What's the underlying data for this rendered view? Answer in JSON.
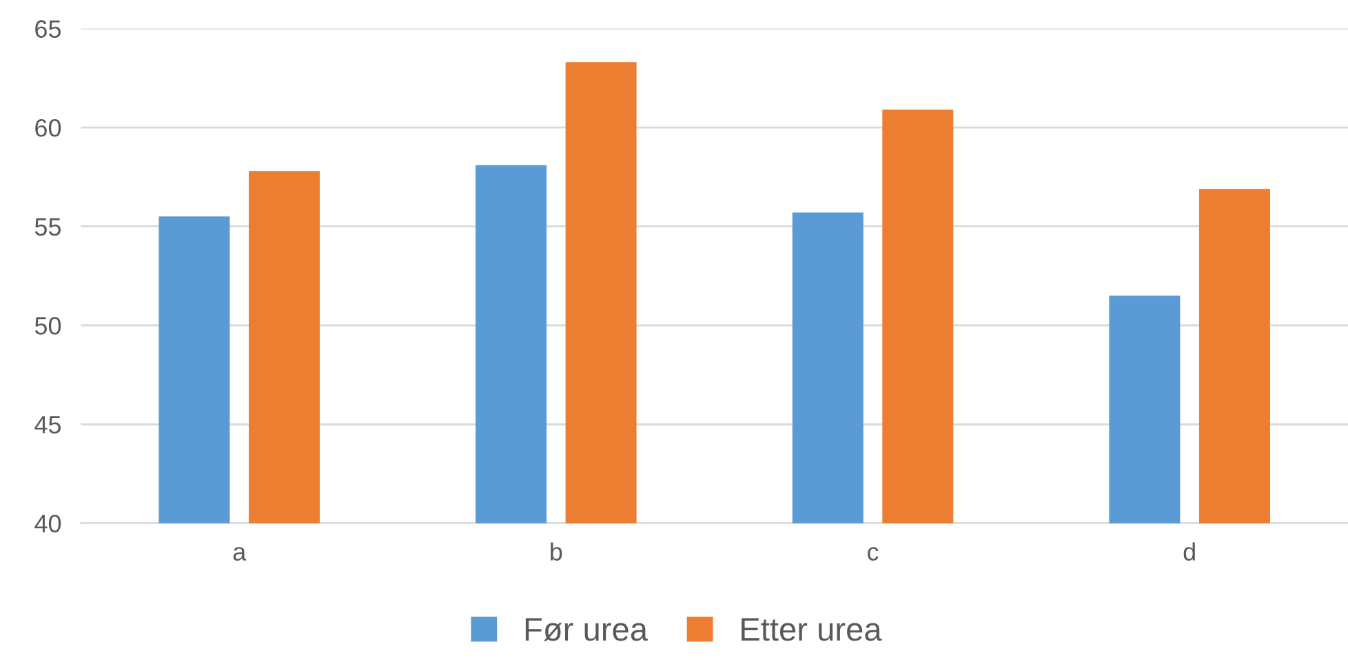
{
  "chart_data": {
    "type": "bar",
    "categories": [
      "a",
      "b",
      "c",
      "d"
    ],
    "series": [
      {
        "name": "Før urea",
        "color": "#5b9bd5",
        "values": [
          55.5,
          58.1,
          55.7,
          51.5
        ]
      },
      {
        "name": "Etter urea",
        "color": "#ed7d31",
        "values": [
          57.8,
          63.3,
          60.9,
          56.9
        ]
      }
    ],
    "ylim": [
      40,
      65
    ],
    "yticks": [
      40,
      45,
      50,
      55,
      60,
      65
    ],
    "grid": "y",
    "legend": "bottom"
  }
}
